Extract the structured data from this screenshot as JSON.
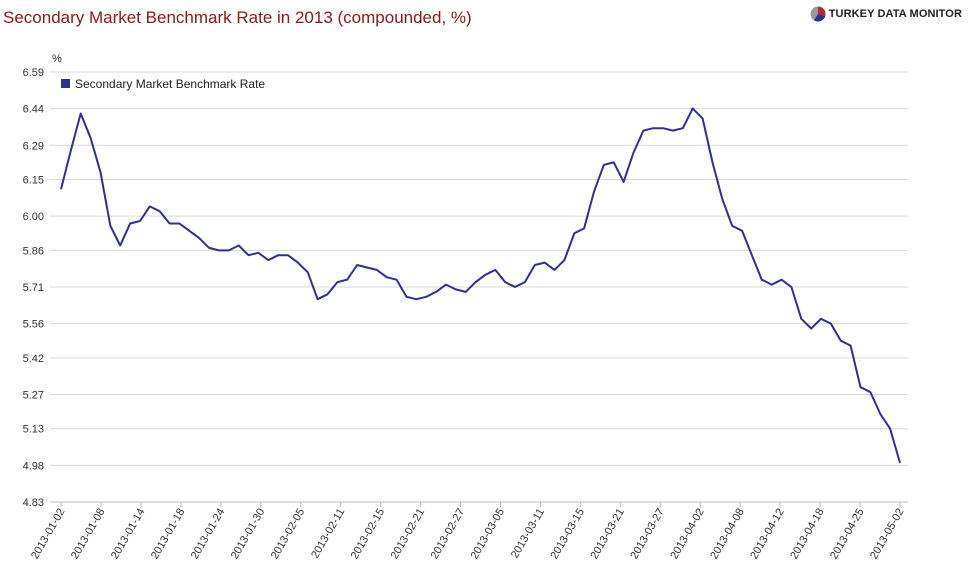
{
  "header": {
    "title": "Secondary Market Benchmark Rate in 2013 (compounded, %)",
    "brand": "TURKEY DATA MONITOR",
    "brand_icon": "pie-chart-logo-icon"
  },
  "colors": {
    "title": "#8b1a1a",
    "series": "#2e3192",
    "grid": "#d9d9d9",
    "brand_red": "#c0272d",
    "brand_blue": "#2e3192",
    "brand_gray": "#999999"
  },
  "chart_data": {
    "type": "line",
    "title": "Secondary Market Benchmark Rate in 2013 (compounded, %)",
    "ylabel": "%",
    "xlabel": "",
    "ylim": [
      4.83,
      6.59
    ],
    "yticks": [
      "6.59",
      "6.44",
      "6.29",
      "6.15",
      "6.00",
      "5.86",
      "5.71",
      "5.56",
      "5.42",
      "5.27",
      "5.13",
      "4.98",
      "4.83"
    ],
    "xtick_labels": [
      "2013-01-02",
      "2013-01-08",
      "2013-01-14",
      "2013-01-18",
      "2013-01-24",
      "2013-01-30",
      "2013-02-05",
      "2013-02-11",
      "2013-02-15",
      "2013-02-21",
      "2013-02-27",
      "2013-03-05",
      "2013-03-11",
      "2013-03-15",
      "2013-03-21",
      "2013-03-27",
      "2013-04-02",
      "2013-04-08",
      "2013-04-12",
      "2013-04-18",
      "2013-04-25",
      "2013-05-02"
    ],
    "grid": true,
    "legend_position": "top-left",
    "series": [
      {
        "name": "Secondary Market Benchmark Rate",
        "values": [
          6.11,
          6.27,
          6.42,
          6.32,
          6.18,
          5.96,
          5.88,
          5.97,
          5.98,
          6.04,
          6.02,
          5.97,
          5.97,
          5.94,
          5.91,
          5.87,
          5.86,
          5.86,
          5.88,
          5.84,
          5.85,
          5.82,
          5.84,
          5.84,
          5.81,
          5.77,
          5.66,
          5.68,
          5.73,
          5.74,
          5.8,
          5.79,
          5.78,
          5.75,
          5.74,
          5.67,
          5.66,
          5.67,
          5.69,
          5.72,
          5.7,
          5.69,
          5.73,
          5.76,
          5.78,
          5.73,
          5.71,
          5.73,
          5.8,
          5.81,
          5.78,
          5.82,
          5.93,
          5.95,
          6.1,
          6.21,
          6.22,
          6.14,
          6.26,
          6.35,
          6.36,
          6.36,
          6.35,
          6.36,
          6.44,
          6.4,
          6.22,
          6.07,
          5.96,
          5.94,
          5.84,
          5.74,
          5.72,
          5.74,
          5.71,
          5.58,
          5.54,
          5.58,
          5.56,
          5.49,
          5.47,
          5.3,
          5.28,
          5.19,
          5.13,
          4.99
        ]
      }
    ]
  }
}
